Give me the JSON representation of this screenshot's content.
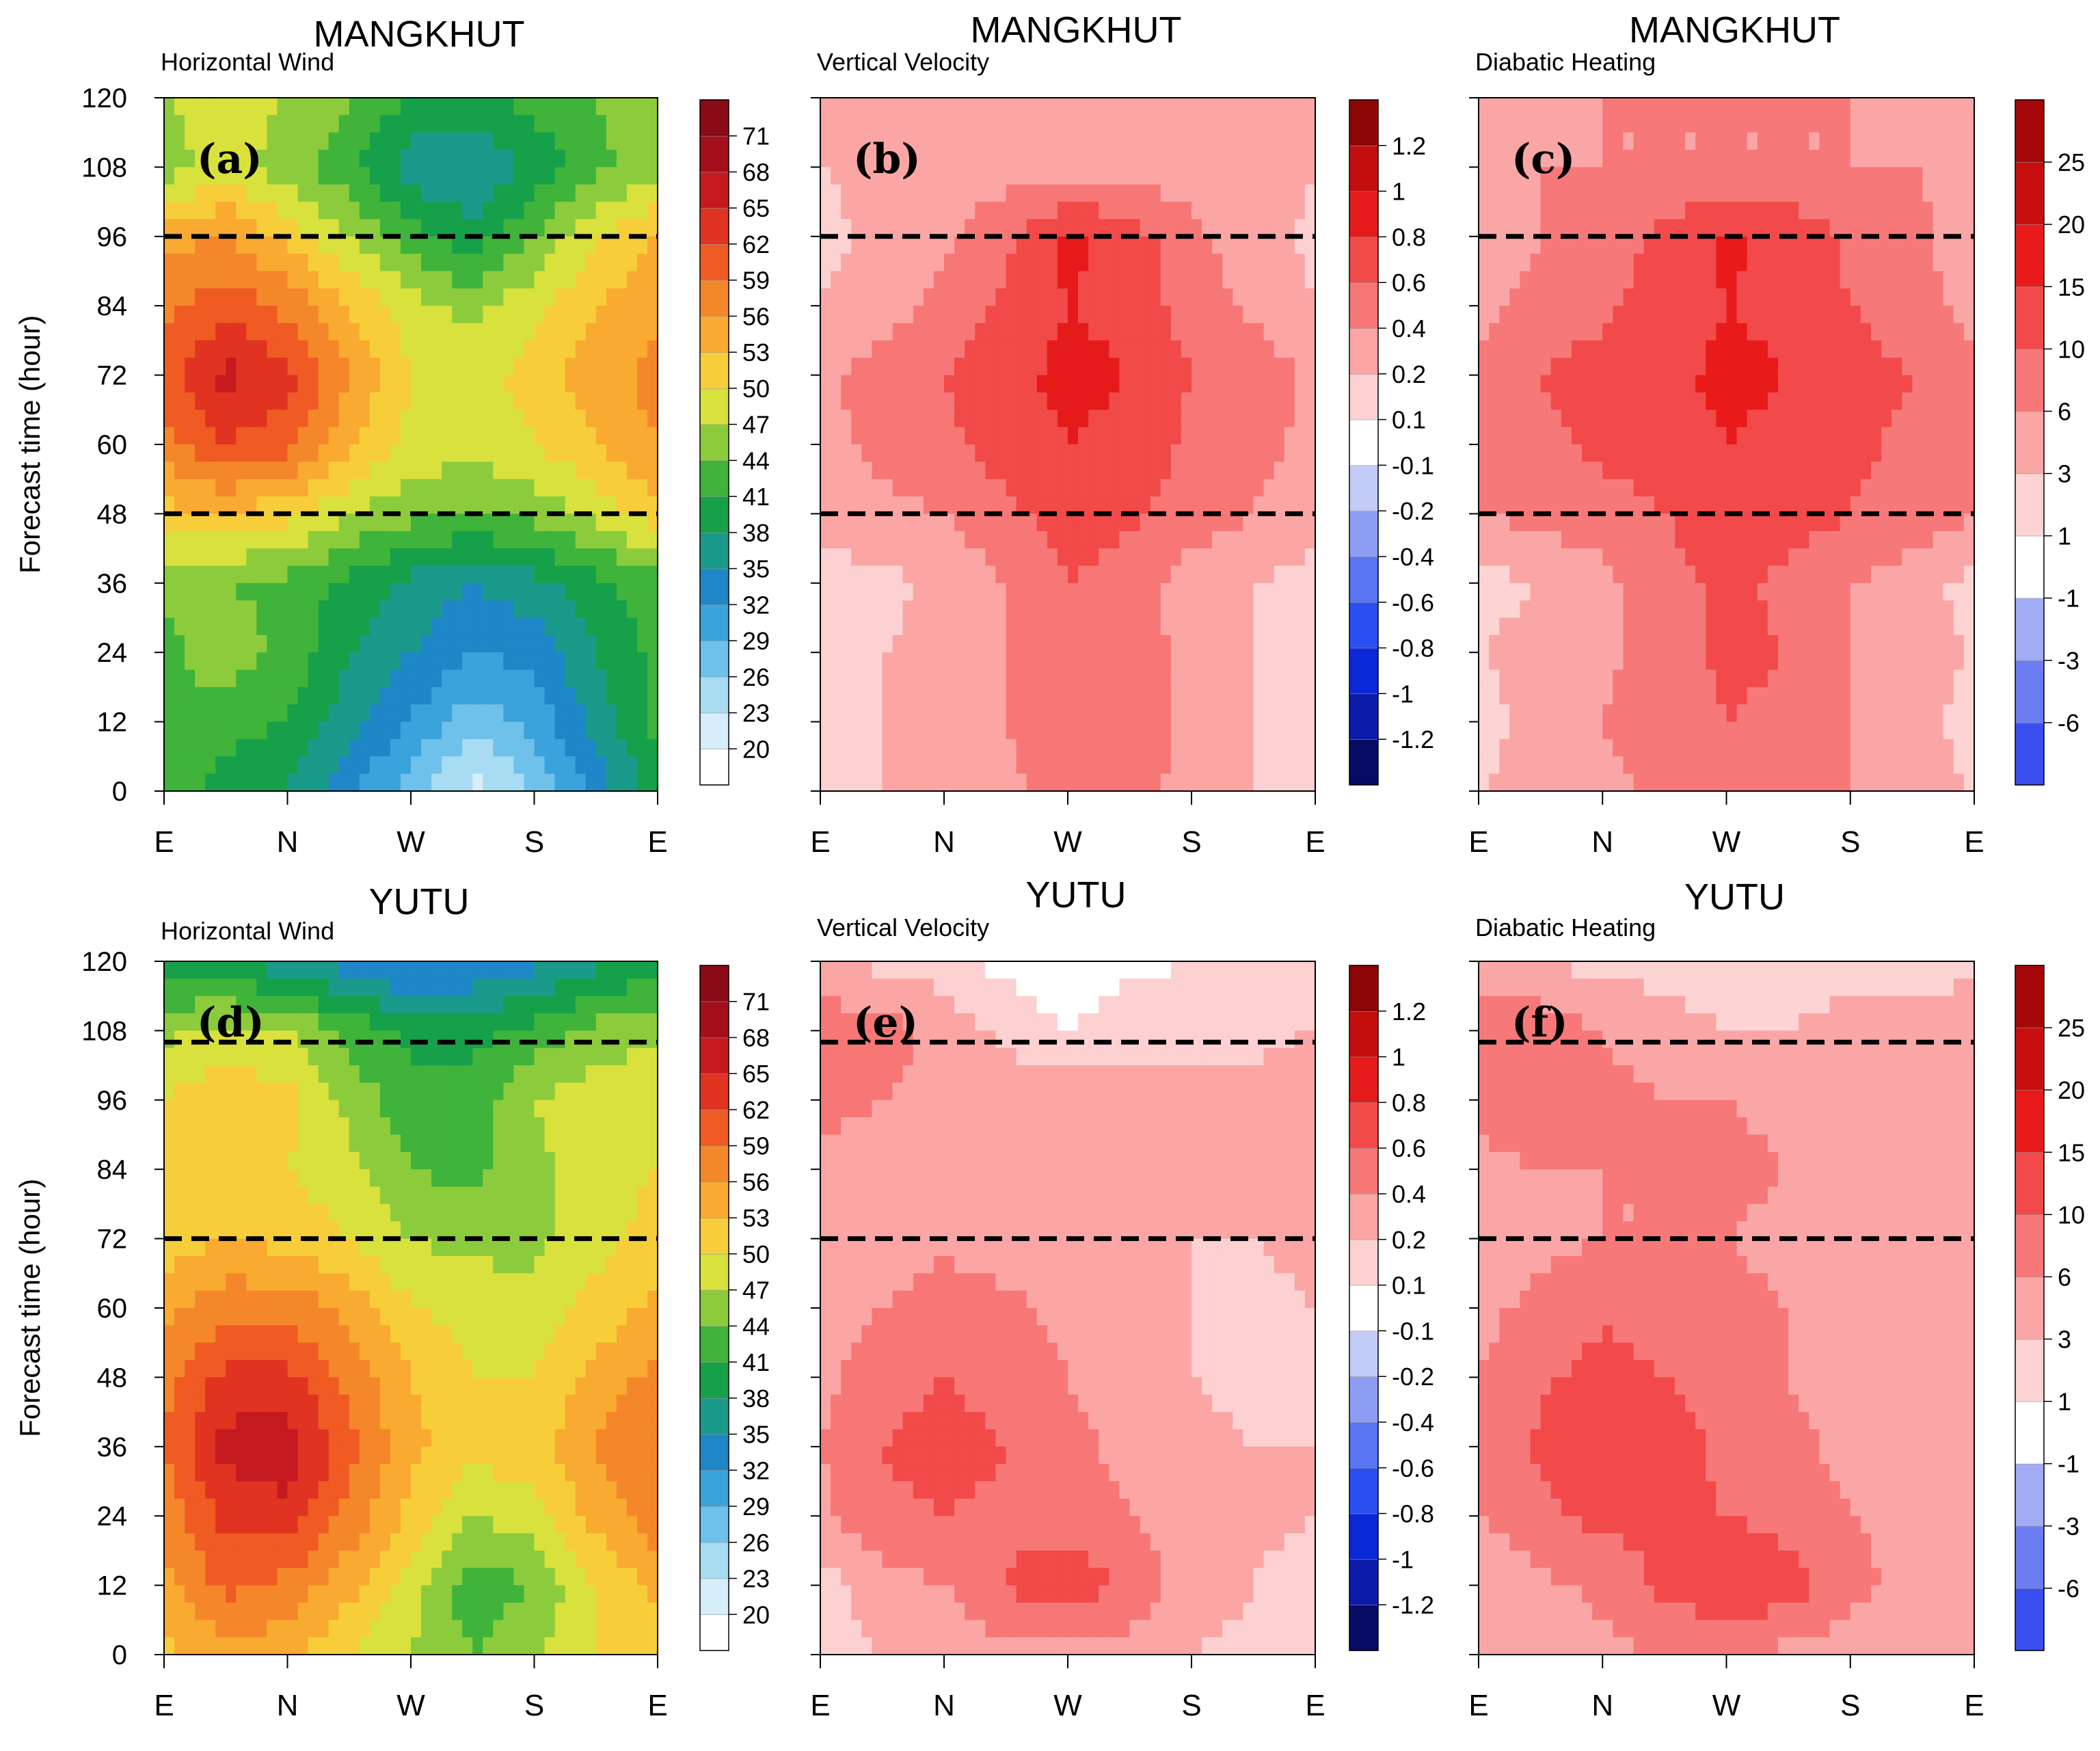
{
  "figure": {
    "y_axis_label": "Forecast time (hour)",
    "y_ticks": [
      "0",
      "12",
      "24",
      "36",
      "48",
      "60",
      "72",
      "84",
      "96",
      "108",
      "120"
    ],
    "x_ticks": [
      "E",
      "N",
      "W",
      "S",
      "E"
    ]
  },
  "chart_data": [
    {
      "id": "a",
      "type": "heatmap",
      "panel_label": "(a)",
      "storm": "MANGKHUT",
      "title": "MANGKHUT",
      "subtitle": "Horizontal Wind",
      "xlabel": "",
      "ylabel": "Forecast time (hour)",
      "xlim": [
        0,
        360
      ],
      "ylim": [
        0,
        120
      ],
      "x_categories": [
        "E",
        "N",
        "W",
        "S",
        "E"
      ],
      "reference_lines": [
        48,
        96
      ],
      "colorbar": {
        "labels": [
          "20",
          "23",
          "26",
          "29",
          "32",
          "35",
          "38",
          "41",
          "44",
          "47",
          "50",
          "53",
          "56",
          "59",
          "62",
          "65",
          "68",
          "71"
        ]
      },
      "field": {
        "times": [
          0,
          12,
          24,
          36,
          48,
          60,
          72,
          84,
          96,
          108,
          120
        ],
        "azimuths": [
          0,
          45,
          90,
          135,
          180,
          225,
          270,
          315,
          360
        ],
        "values": [
          [
            42,
            40,
            38,
            33,
            27,
            22,
            26,
            33,
            40
          ],
          [
            44,
            42,
            41,
            36,
            32,
            27,
            30,
            36,
            42
          ],
          [
            43,
            46,
            43,
            38,
            35,
            32,
            33,
            38,
            42
          ],
          [
            45,
            44,
            43,
            40,
            37,
            35,
            37,
            40,
            43
          ],
          [
            52,
            53,
            51,
            47,
            45,
            44,
            45,
            48,
            52
          ],
          [
            58,
            62,
            60,
            54,
            49,
            48,
            50,
            53,
            56
          ],
          [
            60,
            66,
            63,
            56,
            50,
            49,
            51,
            55,
            57
          ],
          [
            58,
            61,
            58,
            53,
            48,
            46,
            49,
            53,
            55
          ],
          [
            55,
            56,
            52,
            47,
            42,
            39,
            44,
            50,
            53
          ],
          [
            45,
            49,
            45,
            42,
            36,
            35,
            39,
            43,
            46
          ],
          [
            47,
            49,
            47,
            44,
            41,
            40,
            42,
            44,
            46
          ]
        ]
      }
    },
    {
      "id": "b",
      "type": "heatmap",
      "panel_label": "(b)",
      "storm": "MANGKHUT",
      "title": "MANGKHUT",
      "subtitle": "Vertical Velocity",
      "xlabel": "",
      "ylabel": "",
      "xlim": [
        0,
        360
      ],
      "ylim": [
        0,
        120
      ],
      "x_categories": [
        "E",
        "N",
        "W",
        "S",
        "E"
      ],
      "reference_lines": [
        48,
        96
      ],
      "colorbar": {
        "labels": [
          "-1.2",
          "-1",
          "-0.8",
          "-0.6",
          "-0.4",
          "-0.2",
          "-0.1",
          "0.1",
          "0.2",
          "0.4",
          "0.6",
          "0.8",
          "1",
          "1.2"
        ]
      },
      "field": {
        "times": [
          0,
          12,
          24,
          36,
          48,
          60,
          72,
          84,
          96,
          108,
          120
        ],
        "azimuths": [
          0,
          45,
          90,
          135,
          180,
          225,
          270,
          315,
          360
        ],
        "values": [
          [
            0.15,
            0.2,
            0.25,
            0.35,
            0.5,
            0.45,
            0.35,
            0.2,
            0.15
          ],
          [
            0.1,
            0.2,
            0.3,
            0.4,
            0.6,
            0.55,
            0.35,
            0.2,
            0.1
          ],
          [
            0.15,
            0.2,
            0.25,
            0.4,
            0.6,
            0.55,
            0.3,
            0.2,
            0.15
          ],
          [
            0.1,
            0.15,
            0.25,
            0.4,
            0.6,
            0.5,
            0.3,
            0.2,
            0.1
          ],
          [
            0.3,
            0.35,
            0.4,
            0.55,
            0.7,
            0.65,
            0.5,
            0.4,
            0.3
          ],
          [
            0.35,
            0.45,
            0.55,
            0.7,
            0.8,
            0.75,
            0.55,
            0.45,
            0.35
          ],
          [
            0.35,
            0.5,
            0.6,
            0.75,
            0.85,
            0.8,
            0.6,
            0.55,
            0.35
          ],
          [
            0.2,
            0.3,
            0.45,
            0.65,
            0.8,
            0.75,
            0.5,
            0.35,
            0.2
          ],
          [
            0.15,
            0.25,
            0.35,
            0.55,
            0.85,
            0.7,
            0.45,
            0.3,
            0.15
          ],
          [
            0.2,
            0.25,
            0.3,
            0.3,
            0.3,
            0.3,
            0.3,
            0.3,
            0.2
          ],
          [
            0.2,
            0.2,
            0.25,
            0.25,
            0.25,
            0.25,
            0.25,
            0.2,
            0.2
          ]
        ]
      }
    },
    {
      "id": "c",
      "type": "heatmap",
      "panel_label": "(c)",
      "storm": "MANGKHUT",
      "title": "MANGKHUT",
      "subtitle": "Diabatic Heating",
      "xlabel": "",
      "ylabel": "",
      "xlim": [
        0,
        360
      ],
      "ylim": [
        0,
        120
      ],
      "x_categories": [
        "E",
        "N",
        "W",
        "S",
        "E"
      ],
      "reference_lines": [
        48,
        96
      ],
      "colorbar": {
        "labels": [
          "-6",
          "-3",
          "-1",
          "1",
          "3",
          "6",
          "10",
          "15",
          "20",
          "25"
        ]
      },
      "field": {
        "times": [
          0,
          12,
          24,
          36,
          48,
          60,
          72,
          84,
          96,
          108,
          120
        ],
        "azimuths": [
          0,
          45,
          90,
          135,
          180,
          225,
          270,
          315,
          360
        ],
        "values": [
          [
            3,
            4,
            5,
            7,
            9,
            8,
            6,
            4,
            3
          ],
          [
            2,
            4,
            6,
            8,
            10,
            9,
            6,
            4,
            2
          ],
          [
            3,
            4,
            5,
            8,
            11,
            10,
            6,
            4,
            3
          ],
          [
            2,
            3,
            5,
            8,
            11,
            9,
            6,
            4,
            2
          ],
          [
            6,
            7,
            8,
            10,
            13,
            12,
            10,
            8,
            6
          ],
          [
            7,
            9,
            11,
            13,
            15,
            14,
            11,
            9,
            7
          ],
          [
            7,
            10,
            12,
            14,
            16,
            15,
            12,
            10,
            7
          ],
          [
            5,
            7,
            9,
            12,
            15,
            14,
            10,
            7,
            5
          ],
          [
            4,
            6,
            8,
            11,
            16,
            13,
            9,
            7,
            4
          ],
          [
            5,
            6,
            6,
            6,
            6,
            6,
            6,
            6,
            5
          ],
          [
            5,
            5,
            6,
            6,
            6,
            6,
            6,
            5,
            5
          ]
        ]
      }
    },
    {
      "id": "d",
      "type": "heatmap",
      "panel_label": "(d)",
      "storm": "YUTU",
      "title": "YUTU",
      "subtitle": "Horizontal Wind",
      "xlabel": "",
      "ylabel": "Forecast time (hour)",
      "xlim": [
        0,
        360
      ],
      "ylim": [
        0,
        120
      ],
      "x_categories": [
        "E",
        "N",
        "W",
        "S",
        "E"
      ],
      "reference_lines": [
        72,
        106
      ],
      "colorbar": {
        "labels": [
          "20",
          "23",
          "26",
          "29",
          "32",
          "35",
          "38",
          "41",
          "44",
          "47",
          "50",
          "53",
          "56",
          "59",
          "62",
          "65",
          "68",
          "71"
        ]
      },
      "field": {
        "times": [
          0,
          12,
          24,
          36,
          48,
          60,
          72,
          84,
          96,
          108,
          120
        ],
        "azimuths": [
          0,
          45,
          90,
          135,
          180,
          225,
          270,
          315,
          360
        ],
        "values": [
          [
            52,
            55,
            54,
            50,
            47,
            44,
            47,
            50,
            52
          ],
          [
            55,
            60,
            58,
            54,
            48,
            42,
            44,
            50,
            54
          ],
          [
            57,
            63,
            64,
            58,
            52,
            47,
            49,
            54,
            58
          ],
          [
            59,
            66,
            67,
            60,
            54,
            51,
            52,
            56,
            59
          ],
          [
            58,
            63,
            63,
            58,
            53,
            50,
            50,
            54,
            57
          ],
          [
            55,
            58,
            58,
            55,
            50,
            49,
            48,
            51,
            54
          ],
          [
            51,
            53,
            52,
            50,
            47,
            46,
            46,
            49,
            51
          ],
          [
            50,
            51,
            50,
            48,
            44,
            43,
            46,
            49,
            50
          ],
          [
            50,
            52,
            51,
            46,
            42,
            42,
            47,
            49,
            50
          ],
          [
            46,
            48,
            47,
            43,
            40,
            40,
            42,
            45,
            46
          ],
          [
            40,
            38,
            36,
            33,
            31,
            32,
            34,
            37,
            40
          ]
        ]
      }
    },
    {
      "id": "e",
      "type": "heatmap",
      "panel_label": "(e)",
      "storm": "YUTU",
      "title": "YUTU",
      "subtitle": "Vertical Velocity",
      "xlabel": "",
      "ylabel": "",
      "xlim": [
        0,
        360
      ],
      "ylim": [
        0,
        120
      ],
      "x_categories": [
        "E",
        "N",
        "W",
        "S",
        "E"
      ],
      "reference_lines": [
        72,
        106
      ],
      "colorbar": {
        "labels": [
          "-1.2",
          "-1",
          "-0.8",
          "-0.6",
          "-0.4",
          "-0.2",
          "-0.1",
          "0.1",
          "0.2",
          "0.4",
          "0.6",
          "0.8",
          "1",
          "1.2"
        ]
      },
      "field": {
        "times": [
          0,
          12,
          24,
          36,
          48,
          60,
          72,
          84,
          96,
          108,
          120
        ],
        "azimuths": [
          0,
          45,
          90,
          135,
          180,
          225,
          270,
          315,
          360
        ],
        "values": [
          [
            0.15,
            0.2,
            0.25,
            0.35,
            0.35,
            0.3,
            0.2,
            0.15,
            0.1
          ],
          [
            0.1,
            0.3,
            0.4,
            0.6,
            0.75,
            0.55,
            0.3,
            0.2,
            0.1
          ],
          [
            0.35,
            0.55,
            0.6,
            0.55,
            0.5,
            0.4,
            0.3,
            0.25,
            0.2
          ],
          [
            0.4,
            0.6,
            0.7,
            0.6,
            0.45,
            0.35,
            0.25,
            0.2,
            0.2
          ],
          [
            0.35,
            0.5,
            0.6,
            0.5,
            0.4,
            0.3,
            0.2,
            0.15,
            0.2
          ],
          [
            0.3,
            0.4,
            0.5,
            0.45,
            0.35,
            0.3,
            0.2,
            0.15,
            0.2
          ],
          [
            0.25,
            0.3,
            0.35,
            0.3,
            0.3,
            0.25,
            0.2,
            0.2,
            0.25
          ],
          [
            0.35,
            0.35,
            0.3,
            0.35,
            0.4,
            0.35,
            0.25,
            0.2,
            0.25
          ],
          [
            0.45,
            0.4,
            0.35,
            0.3,
            0.3,
            0.25,
            0.25,
            0.25,
            0.3
          ],
          [
            0.55,
            0.5,
            0.3,
            0.15,
            0.1,
            0.15,
            0.15,
            0.15,
            0.2
          ],
          [
            0.2,
            0.15,
            0.1,
            0.08,
            0.05,
            0.08,
            0.1,
            0.1,
            0.1
          ]
        ]
      }
    },
    {
      "id": "f",
      "type": "heatmap",
      "panel_label": "(f)",
      "storm": "YUTU",
      "title": "YUTU",
      "subtitle": "Diabatic Heating",
      "xlabel": "",
      "ylabel": "",
      "xlim": [
        0,
        360
      ],
      "ylim": [
        0,
        120
      ],
      "x_categories": [
        "E",
        "N",
        "W",
        "S",
        "E"
      ],
      "reference_lines": [
        72,
        106
      ],
      "colorbar": {
        "labels": [
          "-6",
          "-3",
          "-1",
          "1",
          "3",
          "6",
          "10",
          "15",
          "20",
          "25"
        ]
      },
      "field": {
        "times": [
          0,
          12,
          24,
          36,
          48,
          60,
          72,
          84,
          96,
          108,
          120
        ],
        "azimuths": [
          0,
          45,
          90,
          135,
          180,
          225,
          270,
          315,
          360
        ],
        "values": [
          [
            3,
            4,
            5,
            6,
            6,
            5,
            4,
            3,
            3
          ],
          [
            3,
            5,
            7,
            11,
            14,
            12,
            7,
            5,
            3
          ],
          [
            6,
            9,
            11,
            11,
            10,
            8,
            6,
            5,
            4
          ],
          [
            7,
            11,
            14,
            12,
            9,
            7,
            5,
            4,
            4
          ],
          [
            6,
            9,
            12,
            10,
            8,
            6,
            4,
            4,
            4
          ],
          [
            5,
            7,
            9,
            8,
            7,
            6,
            4,
            3,
            4
          ],
          [
            4,
            5,
            6,
            6,
            6,
            5,
            4,
            4,
            4
          ],
          [
            5,
            6,
            6,
            6,
            7,
            6,
            5,
            4,
            5
          ],
          [
            7,
            8,
            7,
            6,
            6,
            5,
            5,
            5,
            6
          ],
          [
            9,
            8,
            6,
            4,
            3,
            3,
            4,
            4,
            5
          ],
          [
            4,
            3,
            2,
            2,
            1.5,
            2,
            2,
            2,
            2
          ]
        ]
      }
    }
  ]
}
